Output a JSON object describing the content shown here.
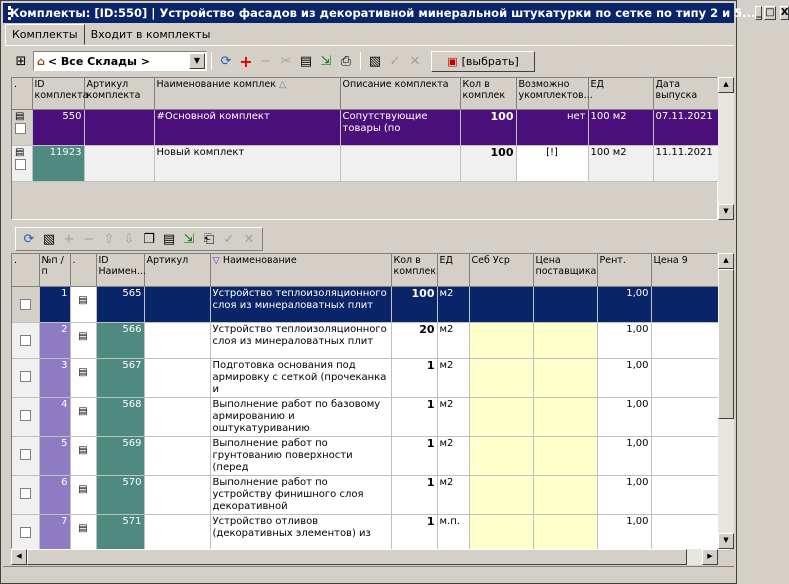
{
  "window": {
    "title": "Комплекты: [ID:550]  | Устройство фасадов из декоративной минеральной штукатурки по сетке по типу 2 и 5...",
    "min": "_",
    "max": "□",
    "close": "X"
  },
  "tabs": [
    {
      "label": "Комплекты"
    },
    {
      "label": "Входит в комплекты"
    }
  ],
  "warehouse": {
    "value": "< Все Склады >"
  },
  "pick_button": "[выбрать]",
  "top_grid": {
    "headers": [
      ".",
      " ID комплекта",
      "Артикул комплекта",
      "Наименование комплек",
      "Описание комплекта",
      "Кол в комплек",
      "Возможно укомплектов...",
      "ЕД",
      "Дата выпуска"
    ],
    "rows": [
      {
        "id": "550",
        "article": "",
        "name": "#Основной комплект",
        "desc": "Сопутствующие товары (по",
        "qty": "100",
        "possible": "нет",
        "unit": "100 м2",
        "date": "07.11.2021"
      },
      {
        "id": "11923",
        "article": "",
        "name": "Новый комплект",
        "desc": "",
        "qty": "100",
        "possible": "[!]",
        "unit": "100 м2",
        "date": "11.11.2021"
      }
    ]
  },
  "bottom_grid": {
    "headers": [
      ".",
      "№п /п",
      ".",
      "ID Наимен...",
      "Артикул",
      "Наименование",
      "Кол в комплек",
      "ЕД",
      "Себ Уср",
      "Цена поставщика",
      "Рент.",
      "Цена 9"
    ],
    "rows": [
      {
        "n": "1",
        "id": "565",
        "name": "Устройство теплоизоляционного слоя из минераловатных плит",
        "qty": "100",
        "unit": "м2",
        "rent": "1,00"
      },
      {
        "n": "2",
        "id": "566",
        "name": "Устройство теплоизоляционного слоя из минераловатных плит",
        "qty": "20",
        "unit": "м2",
        "rent": "1,00"
      },
      {
        "n": "3",
        "id": "567",
        "name": "Подготовка основания под армировку с сеткой (прочеканка и",
        "qty": "1",
        "unit": "м2",
        "rent": "1,00"
      },
      {
        "n": "4",
        "id": "568",
        "name": "Выполнение работ по базовому армированию и оштукатуриванию",
        "qty": "1",
        "unit": "м2",
        "rent": "1,00"
      },
      {
        "n": "5",
        "id": "569",
        "name": "Выполнение работ по грунтованию поверхности (перед",
        "qty": "1",
        "unit": "м2",
        "rent": "1,00"
      },
      {
        "n": "6",
        "id": "570",
        "name": "Выполнение работ по устройству финишного слоя декоративной",
        "qty": "1",
        "unit": "м2",
        "rent": "1,00"
      },
      {
        "n": "7",
        "id": "571",
        "name": "Устройство отливов (декоративных элементов) из",
        "qty": "1",
        "unit": "м.п.",
        "rent": "1,00"
      }
    ]
  }
}
